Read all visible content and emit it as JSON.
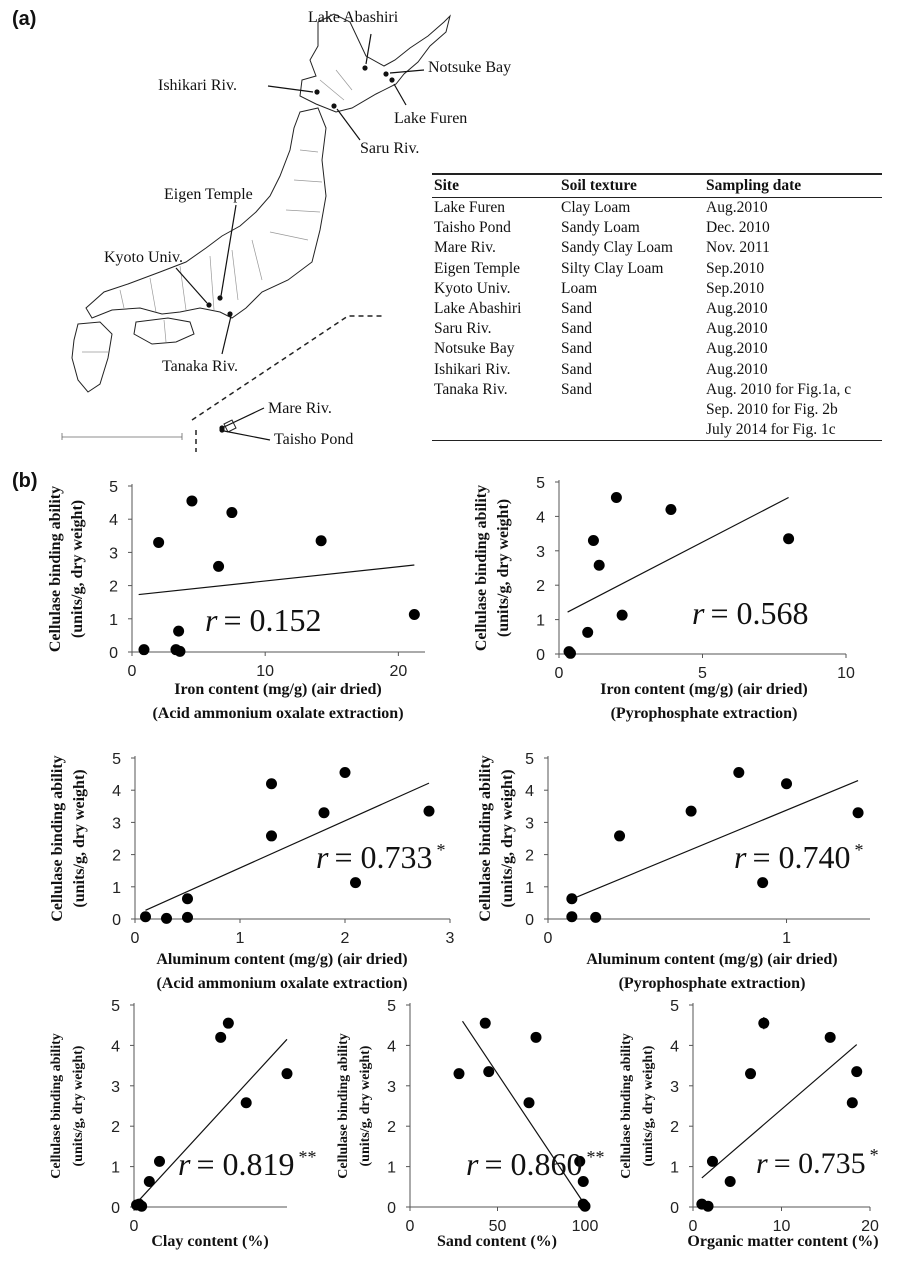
{
  "panel_labels": {
    "a": "(a)",
    "b": "(b)"
  },
  "map": {
    "sites": [
      "Lake Abashiri",
      "Notsuke Bay",
      "Ishikari Riv.",
      "Lake Furen",
      "Saru Riv.",
      "Eigen Temple",
      "Kyoto Univ.",
      "Tanaka Riv.",
      "Mare Riv.",
      "Taisho Pond"
    ]
  },
  "site_table": {
    "headers": [
      "Site",
      "Soil texture",
      "Sampling date"
    ],
    "rows": [
      [
        "Lake Furen",
        "Clay Loam",
        "Aug.2010"
      ],
      [
        "Taisho Pond",
        "Sandy Loam",
        "Dec. 2010"
      ],
      [
        "Mare Riv.",
        "Sandy Clay Loam",
        "Nov. 2011"
      ],
      [
        "Eigen Temple",
        "Silty Clay Loam",
        "Sep.2010"
      ],
      [
        "Kyoto Univ.",
        "Loam",
        "Sep.2010"
      ],
      [
        "Lake Abashiri",
        "Sand",
        "Aug.2010"
      ],
      [
        "Saru Riv.",
        "Sand",
        "Aug.2010"
      ],
      [
        "Notsuke Bay",
        "Sand",
        "Aug.2010"
      ],
      [
        "Ishikari Riv.",
        "Sand",
        "Aug.2010"
      ],
      [
        "Tanaka Riv.",
        "Sand",
        "Aug. 2010 for Fig.1a, c"
      ],
      [
        "",
        "",
        "Sep. 2010 for Fig. 2b"
      ],
      [
        "",
        "",
        "July 2014 for Fig. 1c"
      ]
    ]
  },
  "chart_data": [
    {
      "type": "scatter",
      "xlabel": [
        "Iron content (mg/g) (air dried)",
        "(Acid ammonium oxalate extraction)"
      ],
      "ylabel": [
        "Cellulase binding ability",
        "(units/g, dry weight)"
      ],
      "xlim": [
        0,
        22
      ],
      "ylim": [
        0,
        5
      ],
      "xticks": [
        0,
        10,
        20
      ],
      "yticks": [
        0,
        1,
        2,
        3,
        4,
        5
      ],
      "x": [
        2.0,
        4.5,
        7.5,
        14.2,
        6.5,
        21.2,
        3.5,
        3.3,
        3.6,
        0.9
      ],
      "y": [
        3.3,
        4.55,
        4.2,
        3.35,
        2.58,
        1.13,
        0.63,
        0.07,
        0.02,
        0.07
      ],
      "fit": [
        [
          0.5,
          1.73
        ],
        [
          21.2,
          2.62
        ]
      ],
      "r_label": "= 0.152",
      "r_symbol": "r",
      "signif": ""
    },
    {
      "type": "scatter",
      "xlabel": [
        "Iron content (mg/g) (air dried)",
        "(Pyrophosphate extraction)"
      ],
      "ylabel": [
        "Cellulase binding ability",
        "(units/g, dry weight)"
      ],
      "xlim": [
        0,
        10
      ],
      "ylim": [
        0,
        5
      ],
      "xticks": [
        0,
        5,
        10
      ],
      "yticks": [
        0,
        1,
        2,
        3,
        4,
        5
      ],
      "x": [
        2.0,
        3.9,
        8.0,
        1.2,
        1.4,
        2.2,
        1.0,
        0.35,
        0.4
      ],
      "y": [
        4.55,
        4.2,
        3.35,
        3.3,
        2.58,
        1.13,
        0.63,
        0.07,
        0.02
      ],
      "fit": [
        [
          0.3,
          1.22
        ],
        [
          8.0,
          4.55
        ]
      ],
      "r_label": "= 0.568",
      "r_symbol": "r",
      "signif": ""
    },
    {
      "type": "scatter",
      "xlabel": [
        "Aluminum content (mg/g) (air dried)",
        "(Acid ammonium oxalate extraction)"
      ],
      "ylabel": [
        "Cellulase binding ability",
        "(units/g, dry weight)"
      ],
      "xlim": [
        0,
        3
      ],
      "ylim": [
        0,
        5
      ],
      "xticks": [
        0,
        1,
        2,
        3
      ],
      "yticks": [
        0,
        1,
        2,
        3,
        4,
        5
      ],
      "x": [
        1.3,
        2.0,
        1.8,
        2.8,
        1.3,
        2.1,
        0.5,
        0.1,
        0.3,
        0.5
      ],
      "y": [
        4.2,
        4.55,
        3.3,
        3.35,
        2.58,
        1.13,
        0.63,
        0.07,
        0.02,
        0.05
      ],
      "fit": [
        [
          0.1,
          0.27
        ],
        [
          2.8,
          4.22
        ]
      ],
      "r_label": "= 0.733",
      "r_symbol": "r",
      "signif": "*"
    },
    {
      "type": "scatter",
      "xlabel": [
        "Aluminum content (mg/g) (air dried)",
        "(Pyrophosphate extraction)"
      ],
      "ylabel": [
        "Cellulase binding ability",
        "(units/g, dry weight)"
      ],
      "xlim": [
        0,
        1.35
      ],
      "ylim": [
        0,
        5
      ],
      "xticks": [
        0,
        1
      ],
      "yticks": [
        0,
        1,
        2,
        3,
        4,
        5
      ],
      "x": [
        0.8,
        1.0,
        1.3,
        0.6,
        0.3,
        0.9,
        0.1,
        0.1,
        0.2
      ],
      "y": [
        4.55,
        4.2,
        3.3,
        3.35,
        2.58,
        1.13,
        0.63,
        0.07,
        0.05
      ],
      "fit": [
        [
          0.1,
          0.62
        ],
        [
          1.3,
          4.3
        ]
      ],
      "r_label": "= 0.740",
      "r_symbol": "r",
      "signif": "*"
    },
    {
      "type": "scatter",
      "xlabel": [
        "Clay content (%)"
      ],
      "ylabel": [
        "Cellulase binding ability",
        "(units/g, dry weight)"
      ],
      "xlim": [
        0,
        30
      ],
      "ylim": [
        0,
        5
      ],
      "xticks": [
        0
      ],
      "yticks": [
        0,
        1,
        2,
        3,
        4,
        5
      ],
      "x": [
        17,
        18.5,
        30,
        22,
        5,
        3,
        1,
        1.5,
        0.5
      ],
      "y": [
        4.2,
        4.55,
        3.3,
        2.58,
        1.13,
        0.63,
        0.07,
        0.02,
        0.05
      ],
      "fit": [
        [
          0.5,
          0.1
        ],
        [
          30,
          4.15
        ]
      ],
      "r_label": "= 0.819",
      "r_symbol": "r",
      "signif": "**"
    },
    {
      "type": "scatter",
      "xlabel": [
        "Sand content (%)"
      ],
      "ylabel": [
        "Cellulase binding ability",
        "(units/g, dry weight)"
      ],
      "xlim": [
        0,
        100
      ],
      "ylim": [
        0,
        5
      ],
      "xticks": [
        0,
        50,
        100
      ],
      "yticks": [
        0,
        1,
        2,
        3,
        4,
        5
      ],
      "x": [
        43,
        72,
        28,
        45,
        68,
        97,
        99,
        99,
        100
      ],
      "y": [
        4.55,
        4.2,
        3.3,
        3.35,
        2.58,
        1.13,
        0.63,
        0.07,
        0.02
      ],
      "fit": [
        [
          30,
          4.6
        ],
        [
          100,
          0.05
        ]
      ],
      "r_label": "= 0.860",
      "r_symbol": "r",
      "signif": "**"
    },
    {
      "type": "scatter",
      "xlabel": [
        "Organic matter content (%)"
      ],
      "ylabel": [
        "Cellulase binding ability",
        "(units/g, dry weight)"
      ],
      "xlim": [
        0,
        20
      ],
      "ylim": [
        0,
        5
      ],
      "xticks": [
        0,
        10,
        20
      ],
      "yticks": [
        0,
        1,
        2,
        3,
        4,
        5
      ],
      "x": [
        8,
        15.5,
        6.5,
        18.5,
        18,
        2.2,
        4.2,
        1,
        1.7
      ],
      "y": [
        4.55,
        4.2,
        3.3,
        3.35,
        2.58,
        1.13,
        0.63,
        0.07,
        0.02
      ],
      "errors": [
        0.15,
        0.1,
        0.1,
        0.12,
        0.1,
        0.08,
        0.05,
        0,
        0
      ],
      "fit": [
        [
          1.0,
          0.72
        ],
        [
          18.5,
          4.02
        ]
      ],
      "r_label": "= 0.735",
      "r_symbol": "r",
      "signif": "*"
    }
  ]
}
